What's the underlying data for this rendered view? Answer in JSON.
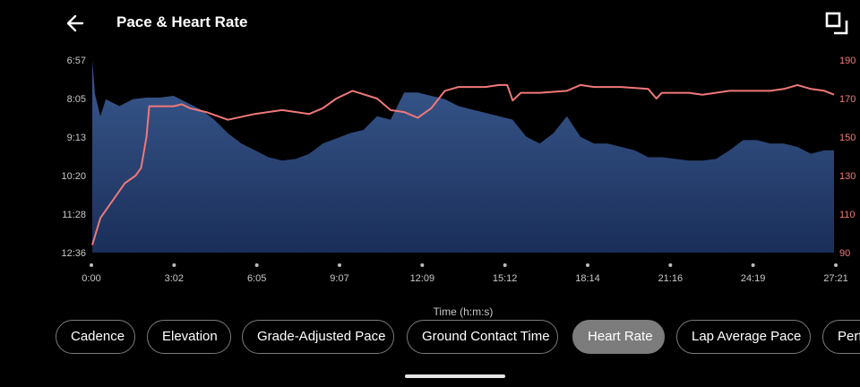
{
  "header": {
    "title": "Pace & Heart Rate"
  },
  "icons": {
    "back": "arrow-left-icon",
    "expand": "fullscreen-icon"
  },
  "colors": {
    "pace_fill_top": "#3a5a8f",
    "pace_fill_bottom": "#1a2e59",
    "heart_rate": "#f07878",
    "background": "#000000"
  },
  "chips": [
    {
      "label": "Cadence",
      "active": false
    },
    {
      "label": "Elevation",
      "active": false
    },
    {
      "label": "Grade-Adjusted Pace",
      "active": false
    },
    {
      "label": "Ground Contact Time",
      "active": false
    },
    {
      "label": "Heart Rate",
      "active": true
    },
    {
      "label": "Lap Average Pace",
      "active": false
    },
    {
      "label": "Perf",
      "active": false
    }
  ],
  "chart_data": {
    "type": "area",
    "xlabel": "Time (h:m:s)",
    "x_ticks": [
      "0:00",
      "3:02",
      "6:05",
      "9:07",
      "12:09",
      "15:12",
      "18:14",
      "21:16",
      "24:19",
      "27:21"
    ],
    "left_axis": {
      "ticks": [
        "6:57",
        "8:05",
        "9:13",
        "10:20",
        "11:28",
        "12:36"
      ],
      "inverted": true
    },
    "right_axis": {
      "ticks": [
        "190",
        "170",
        "150",
        "130",
        "110",
        "90"
      ],
      "range": [
        90,
        190
      ]
    },
    "series": [
      {
        "name": "Pace",
        "axis": "left",
        "style": "area",
        "x_min": [
          0,
          0.1,
          0.3,
          0.5,
          1,
          1.5,
          2,
          2.5,
          3,
          3.5,
          4,
          4.5,
          5,
          5.5,
          6,
          6.5,
          7,
          7.5,
          8,
          8.5,
          9,
          9.5,
          10,
          10.5,
          11,
          11.5,
          12,
          12.5,
          13,
          13.5,
          14,
          14.5,
          15,
          15.5,
          16,
          16.5,
          17,
          17.5,
          18,
          18.5,
          19,
          19.5,
          20,
          20.5,
          21,
          21.5,
          22,
          22.5,
          23,
          23.5,
          24,
          24.5,
          25,
          25.5,
          26,
          26.5,
          27,
          27.35
        ],
        "pace_min": [
          6.95,
          7.95,
          8.6,
          8.1,
          8.3,
          8.1,
          8.05,
          8.05,
          8.0,
          8.2,
          8.4,
          8.7,
          9.1,
          9.4,
          9.6,
          9.8,
          9.9,
          9.85,
          9.7,
          9.4,
          9.25,
          9.1,
          9.0,
          8.6,
          8.7,
          7.9,
          7.9,
          8.0,
          8.1,
          8.3,
          8.4,
          8.5,
          8.6,
          8.7,
          9.2,
          9.4,
          9.1,
          8.6,
          9.2,
          9.4,
          9.4,
          9.5,
          9.6,
          9.8,
          9.8,
          9.85,
          9.9,
          9.9,
          9.85,
          9.6,
          9.3,
          9.3,
          9.4,
          9.4,
          9.5,
          9.7,
          9.6,
          9.6
        ]
      },
      {
        "name": "Heart Rate",
        "axis": "right",
        "style": "line",
        "x_min": [
          0,
          0.3,
          0.8,
          1.2,
          1.6,
          1.8,
          2.0,
          2.1,
          2.3,
          2.5,
          3.0,
          3.3,
          3.6,
          4.2,
          5.0,
          6.0,
          7.0,
          8.0,
          8.5,
          9.0,
          9.6,
          10.5,
          11.0,
          11.5,
          12.0,
          12.5,
          13.0,
          13.5,
          14.0,
          14.5,
          15.0,
          15.3,
          15.5,
          15.8,
          16.5,
          17.5,
          18.0,
          18.5,
          19.5,
          20.5,
          20.8,
          21.0,
          22.0,
          22.5,
          23.5,
          24.0,
          25.0,
          25.5,
          26.0,
          26.5,
          27.0,
          27.35
        ],
        "hr_bpm": [
          94,
          108,
          118,
          126,
          130,
          134,
          150,
          166,
          166,
          166,
          166,
          167,
          165,
          163,
          159,
          162,
          164,
          162,
          165,
          170,
          174,
          170,
          164,
          163,
          160,
          165,
          174,
          176,
          176,
          176,
          177,
          177,
          169,
          173,
          173,
          174,
          177,
          176,
          176,
          175,
          170,
          173,
          173,
          172,
          174,
          174,
          174,
          175,
          177,
          175,
          174,
          172
        ]
      }
    ]
  }
}
